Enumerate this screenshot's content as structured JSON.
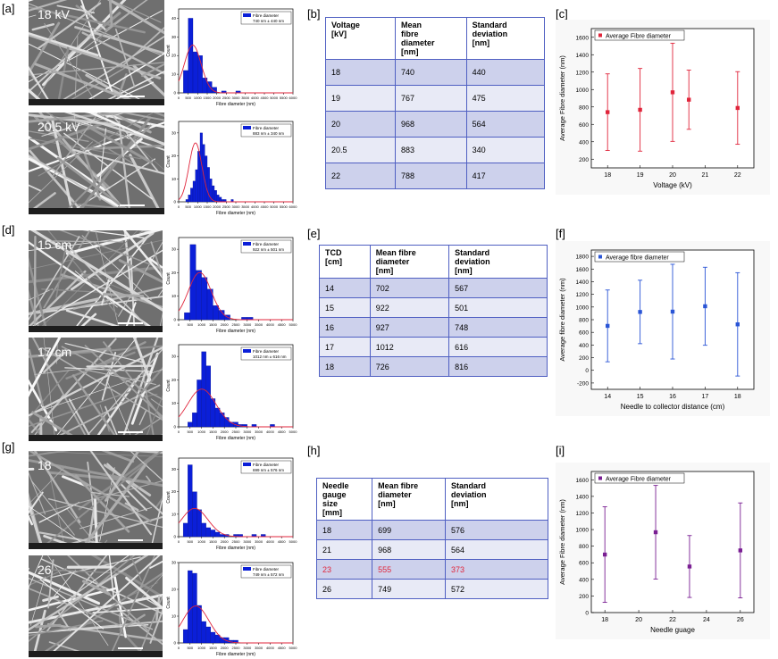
{
  "panel_labels": [
    "[a]",
    "[b]",
    "[c]",
    "[d]",
    "[e]",
    "[f]",
    "[g]",
    "[h]",
    "[i]"
  ],
  "sem_labels": {
    "a1": "18 kV",
    "a2": "20.5 kV",
    "d1": "15 cm",
    "d2": "17 cm",
    "g1": "18",
    "g2": "26"
  },
  "table_b": {
    "headers": [
      "Voltage\n[kV]",
      "Mean\nfibre\ndiameter\n[nm]",
      "Standard\ndeviation\n[nm]"
    ],
    "rows": [
      [
        "18",
        "740",
        "440"
      ],
      [
        "19",
        "767",
        "475"
      ],
      [
        "20",
        "968",
        "564"
      ],
      [
        "20.5",
        "883",
        "340"
      ],
      [
        "22",
        "788",
        "417"
      ]
    ]
  },
  "table_e": {
    "headers": [
      "TCD\n[cm]",
      "Mean fibre\ndiameter\n[nm]",
      "Standard\ndeviation\n[nm]"
    ],
    "rows": [
      [
        "14",
        "702",
        "567"
      ],
      [
        "15",
        "922",
        "501"
      ],
      [
        "16",
        "927",
        "748"
      ],
      [
        "17",
        "1012",
        "616"
      ],
      [
        "18",
        "726",
        "816"
      ]
    ]
  },
  "table_h": {
    "headers": [
      "Needle\ngauge\nsize\n[mm]",
      "Mean fibre\ndiameter\n[nm]",
      "Standard\ndeviation\n[nm]"
    ],
    "rows": [
      [
        "18",
        "699",
        "576"
      ],
      [
        "21",
        "968",
        "564"
      ],
      [
        "23",
        "555",
        "373"
      ],
      [
        "26",
        "749",
        "572"
      ]
    ],
    "highlight_row": 2,
    "highlight_color": "#e0253b"
  },
  "histograms": {
    "legend_label": "Fibre diameter",
    "xlabel": "Fibre diameter (nm)",
    "ylabel": "Count",
    "items": [
      {
        "id": "a1",
        "stats": "740 nm ± 440 nm",
        "ymax": 45,
        "yticks": [
          0,
          10,
          20,
          30,
          40
        ],
        "xmax": 6000,
        "xticks": [
          0,
          500,
          1000,
          1500,
          2000,
          2500,
          3000,
          3500,
          4000,
          4500,
          5000,
          5500,
          6000
        ],
        "bin": 250,
        "counts": [
          0,
          12,
          40,
          22,
          20,
          8,
          6,
          3,
          0,
          1,
          0,
          0,
          1,
          0,
          0,
          0,
          0,
          0,
          0,
          0,
          0,
          0,
          0,
          0
        ],
        "mean": 740,
        "sd": 440
      },
      {
        "id": "a2",
        "stats": "883 nm ± 340 nm",
        "ymax": 35,
        "yticks": [
          0,
          10,
          20,
          30
        ],
        "xmax": 6000,
        "xticks": [
          0,
          500,
          1000,
          1500,
          2000,
          2500,
          3000,
          3500,
          4000,
          4500,
          5000,
          5500,
          6000
        ],
        "bin": 125,
        "counts": [
          0,
          0,
          0,
          1,
          3,
          6,
          9,
          14,
          22,
          30,
          25,
          20,
          15,
          10,
          7,
          5,
          3,
          2,
          1,
          1,
          0,
          0,
          1,
          0
        ],
        "mean": 883,
        "sd": 340
      },
      {
        "id": "d1",
        "stats": "922 nm ± 501 nm",
        "ymax": 35,
        "yticks": [
          0,
          10,
          20,
          30
        ],
        "xmax": 5000,
        "xticks": [
          0,
          500,
          1000,
          1500,
          2000,
          2500,
          3000,
          3500,
          4000,
          4500,
          5000
        ],
        "bin": 250,
        "counts": [
          0,
          3,
          32,
          21,
          18,
          13,
          6,
          4,
          2,
          0,
          0,
          1,
          1,
          0,
          0,
          0,
          0,
          0,
          0,
          0
        ],
        "mean": 922,
        "sd": 501
      },
      {
        "id": "d2",
        "stats": "1012 nm ± 616 nm",
        "ymax": 35,
        "yticks": [
          0,
          10,
          20,
          30
        ],
        "xmax": 5000,
        "xticks": [
          0,
          500,
          1000,
          1500,
          2000,
          2500,
          3000,
          3500,
          4000,
          4500,
          5000
        ],
        "bin": 200,
        "counts": [
          0,
          0,
          2,
          6,
          20,
          32,
          26,
          12,
          8,
          6,
          4,
          2,
          2,
          1,
          1,
          0,
          1,
          0,
          0,
          0,
          1,
          0,
          0,
          0,
          0
        ],
        "mean": 1012,
        "sd": 616
      },
      {
        "id": "g1",
        "stats": "699 nm ± 576 nm",
        "ymax": 35,
        "yticks": [
          0,
          10,
          20,
          30
        ],
        "xmax": 5000,
        "xticks": [
          0,
          500,
          1000,
          1500,
          2000,
          2500,
          3000,
          3500,
          4000,
          4500,
          5000
        ],
        "bin": 200,
        "counts": [
          0,
          6,
          32,
          20,
          12,
          6,
          4,
          3,
          2,
          1,
          1,
          0,
          1,
          1,
          0,
          0,
          1,
          0,
          1,
          0,
          0,
          0,
          0,
          0,
          0
        ],
        "mean": 699,
        "sd": 576
      },
      {
        "id": "g2",
        "stats": "749 nm ± 572 nm",
        "ymax": 30,
        "yticks": [
          0,
          10,
          20,
          30
        ],
        "xmax": 5000,
        "xticks": [
          0,
          500,
          1000,
          1500,
          2000,
          2500,
          3000,
          3500,
          4000,
          4500,
          5000
        ],
        "bin": 200,
        "counts": [
          0,
          5,
          27,
          26,
          14,
          8,
          6,
          4,
          3,
          2,
          2,
          1,
          1,
          0,
          0,
          0,
          0,
          0,
          0,
          0,
          0,
          0,
          0,
          0,
          0
        ],
        "mean": 749,
        "sd": 572
      }
    ]
  },
  "chart_data": [
    {
      "id": "c",
      "type": "scatter",
      "legend": "Average Fibre diameter",
      "xlabel": "Voltage (kV)",
      "ylabel": "Average Fibre diameter (nm)",
      "xlim": [
        17.5,
        22.5
      ],
      "ylim": [
        100,
        1700
      ],
      "xticks": [
        18,
        19,
        20,
        21,
        22
      ],
      "yticks": [
        200,
        400,
        600,
        800,
        1000,
        1200,
        1400,
        1600
      ],
      "x": [
        18,
        19,
        20,
        20.5,
        22
      ],
      "y": [
        740,
        767,
        968,
        883,
        788
      ],
      "err": [
        440,
        475,
        564,
        340,
        417
      ],
      "color": "#e0253b"
    },
    {
      "id": "f",
      "type": "scatter",
      "legend": "Average fibre diameter",
      "xlabel": "Needle to collector distance (cm)",
      "ylabel": "Average fibre diameter (nm)",
      "xlim": [
        13.5,
        18.5
      ],
      "ylim": [
        -300,
        1900
      ],
      "xticks": [
        14,
        15,
        16,
        17,
        18
      ],
      "yticks": [
        -200,
        0,
        200,
        400,
        600,
        800,
        1000,
        1200,
        1400,
        1600,
        1800
      ],
      "x": [
        14,
        15,
        16,
        17,
        18
      ],
      "y": [
        702,
        922,
        927,
        1012,
        726
      ],
      "err": [
        567,
        501,
        748,
        616,
        816
      ],
      "color": "#2a55d6"
    },
    {
      "id": "i",
      "type": "scatter",
      "legend": "Average Fibre diameter",
      "xlabel": "Needle guage",
      "ylabel": "Average Fibre diameter (nm)",
      "xlim": [
        17.2,
        26.8
      ],
      "ylim": [
        0,
        1700
      ],
      "xticks": [
        18,
        20,
        22,
        24,
        26
      ],
      "yticks": [
        0,
        200,
        400,
        600,
        800,
        1000,
        1200,
        1400,
        1600
      ],
      "x": [
        18,
        21,
        23,
        26
      ],
      "y": [
        699,
        968,
        555,
        749
      ],
      "err": [
        576,
        564,
        373,
        572
      ],
      "color": "#7a1f93"
    }
  ]
}
